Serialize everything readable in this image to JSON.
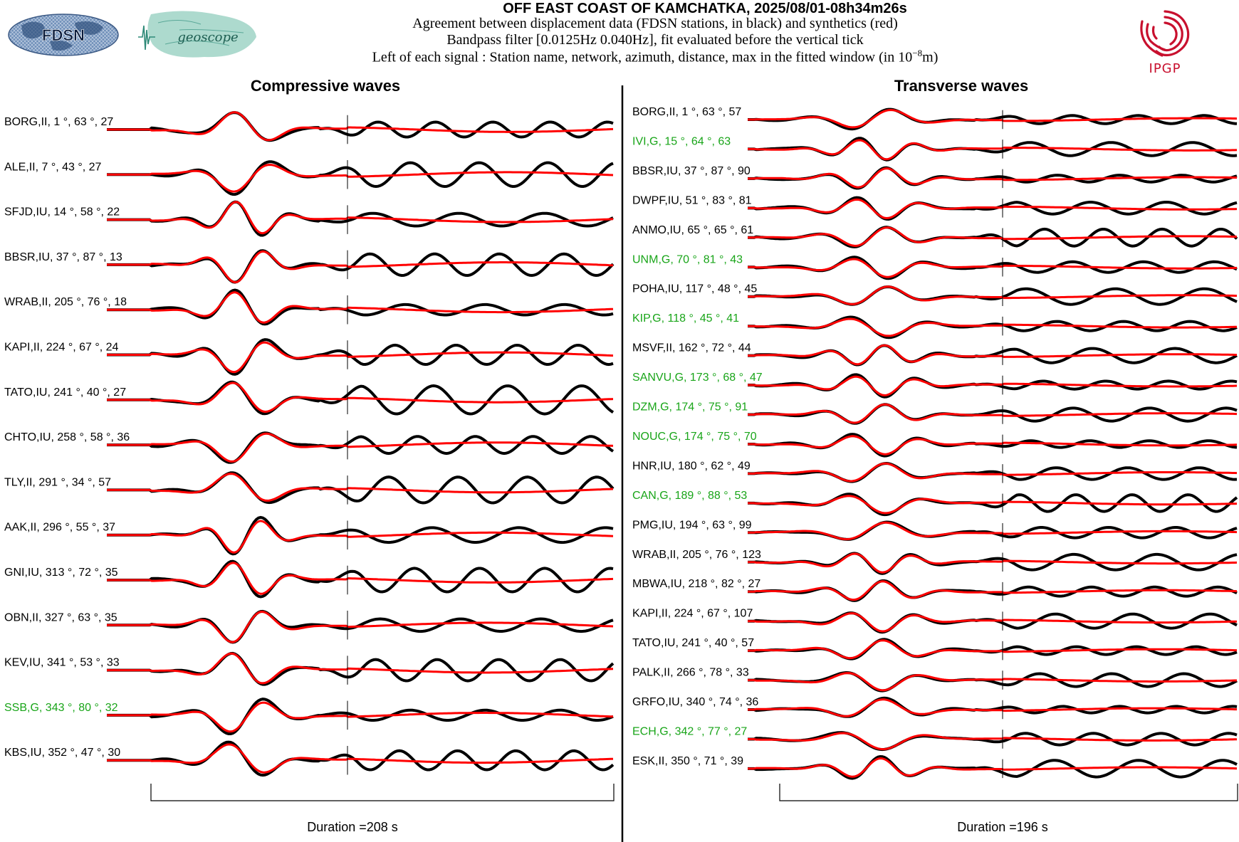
{
  "header": {
    "title": "OFF EAST COAST OF KAMCHATKA, 2025/08/01-08h34m26s",
    "line1": "Agreement between displacement data (FDSN stations, in black) and synthetics (red)",
    "line2": "Bandpass filter [0.0125Hz 0.040Hz], fit evaluated before the vertical tick",
    "line3_prefix": "Left of each signal : Station name, network, azimuth, distance, max in the fitted window (in 10",
    "line3_exp": "−8",
    "line3_suffix": "m)",
    "fdsn_logo_text": "FDSN",
    "geoscope_logo_text": "geoscope",
    "ipgp_logo_text": "IPGP"
  },
  "colors": {
    "data": "#000000",
    "synthetic": "#ff0000",
    "highlight_label": "#19a519",
    "ipgp": "#c8102e"
  },
  "chart_data": [
    {
      "type": "line",
      "panel": "left",
      "title": "Compressive waves",
      "duration_label": "Duration =208 s",
      "series_legend": {
        "data": "displacement data (black)",
        "synthetic": "synthetics (red)"
      },
      "stations": [
        {
          "label": "BORG,II, 1 °, 63 °, 27",
          "highlight": false
        },
        {
          "label": "ALE,II, 7 °, 43 °, 27",
          "highlight": false
        },
        {
          "label": "SFJD,IU, 14 °, 58 °, 22",
          "highlight": false
        },
        {
          "label": "BBSR,IU, 37 °, 87 °, 13",
          "highlight": false
        },
        {
          "label": "WRAB,II, 205 °, 76 °, 18",
          "highlight": false
        },
        {
          "label": "KAPI,II, 224 °, 67 °, 24",
          "highlight": false
        },
        {
          "label": "TATO,IU, 241 °, 40 °, 27",
          "highlight": false
        },
        {
          "label": "CHTO,IU, 258 °, 58 °, 36",
          "highlight": false
        },
        {
          "label": "TLY,II, 291 °, 34 °, 57",
          "highlight": false
        },
        {
          "label": "AAK,II, 296 °, 55 °, 37",
          "highlight": false
        },
        {
          "label": "GNI,IU, 313 °, 72 °, 35",
          "highlight": false
        },
        {
          "label": "OBN,II, 327 °, 63 °, 35",
          "highlight": false
        },
        {
          "label": "KEV,IU, 341 °, 53 °, 33",
          "highlight": false
        },
        {
          "label": "SSB,G, 343 °, 80 °, 32",
          "highlight": true
        },
        {
          "label": "KBS,IU, 352 °, 47 °, 30",
          "highlight": false
        }
      ]
    },
    {
      "type": "line",
      "panel": "right",
      "title": "Transverse waves",
      "duration_label": "Duration =196 s",
      "series_legend": {
        "data": "displacement data (black)",
        "synthetic": "synthetics (red)"
      },
      "stations": [
        {
          "label": "BORG,II, 1 °, 63 °, 57",
          "highlight": false
        },
        {
          "label": "IVI,G, 15 °, 64 °, 63",
          "highlight": true
        },
        {
          "label": "BBSR,IU, 37 °, 87 °, 90",
          "highlight": false
        },
        {
          "label": "DWPF,IU, 51 °, 83 °, 81",
          "highlight": false
        },
        {
          "label": "ANMO,IU, 65 °, 65 °, 61",
          "highlight": false
        },
        {
          "label": "UNM,G, 70 °, 81 °, 43",
          "highlight": true
        },
        {
          "label": "POHA,IU, 117 °, 48 °, 45",
          "highlight": false
        },
        {
          "label": "KIP,G, 118 °, 45 °, 41",
          "highlight": true
        },
        {
          "label": "MSVF,II, 162 °, 72 °, 44",
          "highlight": false
        },
        {
          "label": "SANVU,G, 173 °, 68 °, 47",
          "highlight": true
        },
        {
          "label": "DZM,G, 174 °, 75 °, 91",
          "highlight": true
        },
        {
          "label": "NOUC,G, 174 °, 75 °, 70",
          "highlight": true
        },
        {
          "label": "HNR,IU, 180 °, 62 °, 49",
          "highlight": false
        },
        {
          "label": "CAN,G, 189 °, 88 °, 53",
          "highlight": true
        },
        {
          "label": "PMG,IU, 194 °, 63 °, 99",
          "highlight": false
        },
        {
          "label": "WRAB,II, 205 °, 76 °, 123",
          "highlight": false
        },
        {
          "label": "MBWA,IU, 218 °, 82 °, 27",
          "highlight": false
        },
        {
          "label": "KAPI,II, 224 °, 67 °, 107",
          "highlight": false
        },
        {
          "label": "TATO,IU, 241 °, 40 °, 57",
          "highlight": false
        },
        {
          "label": "PALK,II, 266 °, 78 °, 33",
          "highlight": false
        },
        {
          "label": "GRFO,IU, 340 °, 74 °, 36",
          "highlight": false
        },
        {
          "label": "ECH,G, 342 °, 77 °, 27",
          "highlight": true
        },
        {
          "label": "ESK,II, 350 °, 71 °, 39",
          "highlight": false
        }
      ]
    }
  ]
}
